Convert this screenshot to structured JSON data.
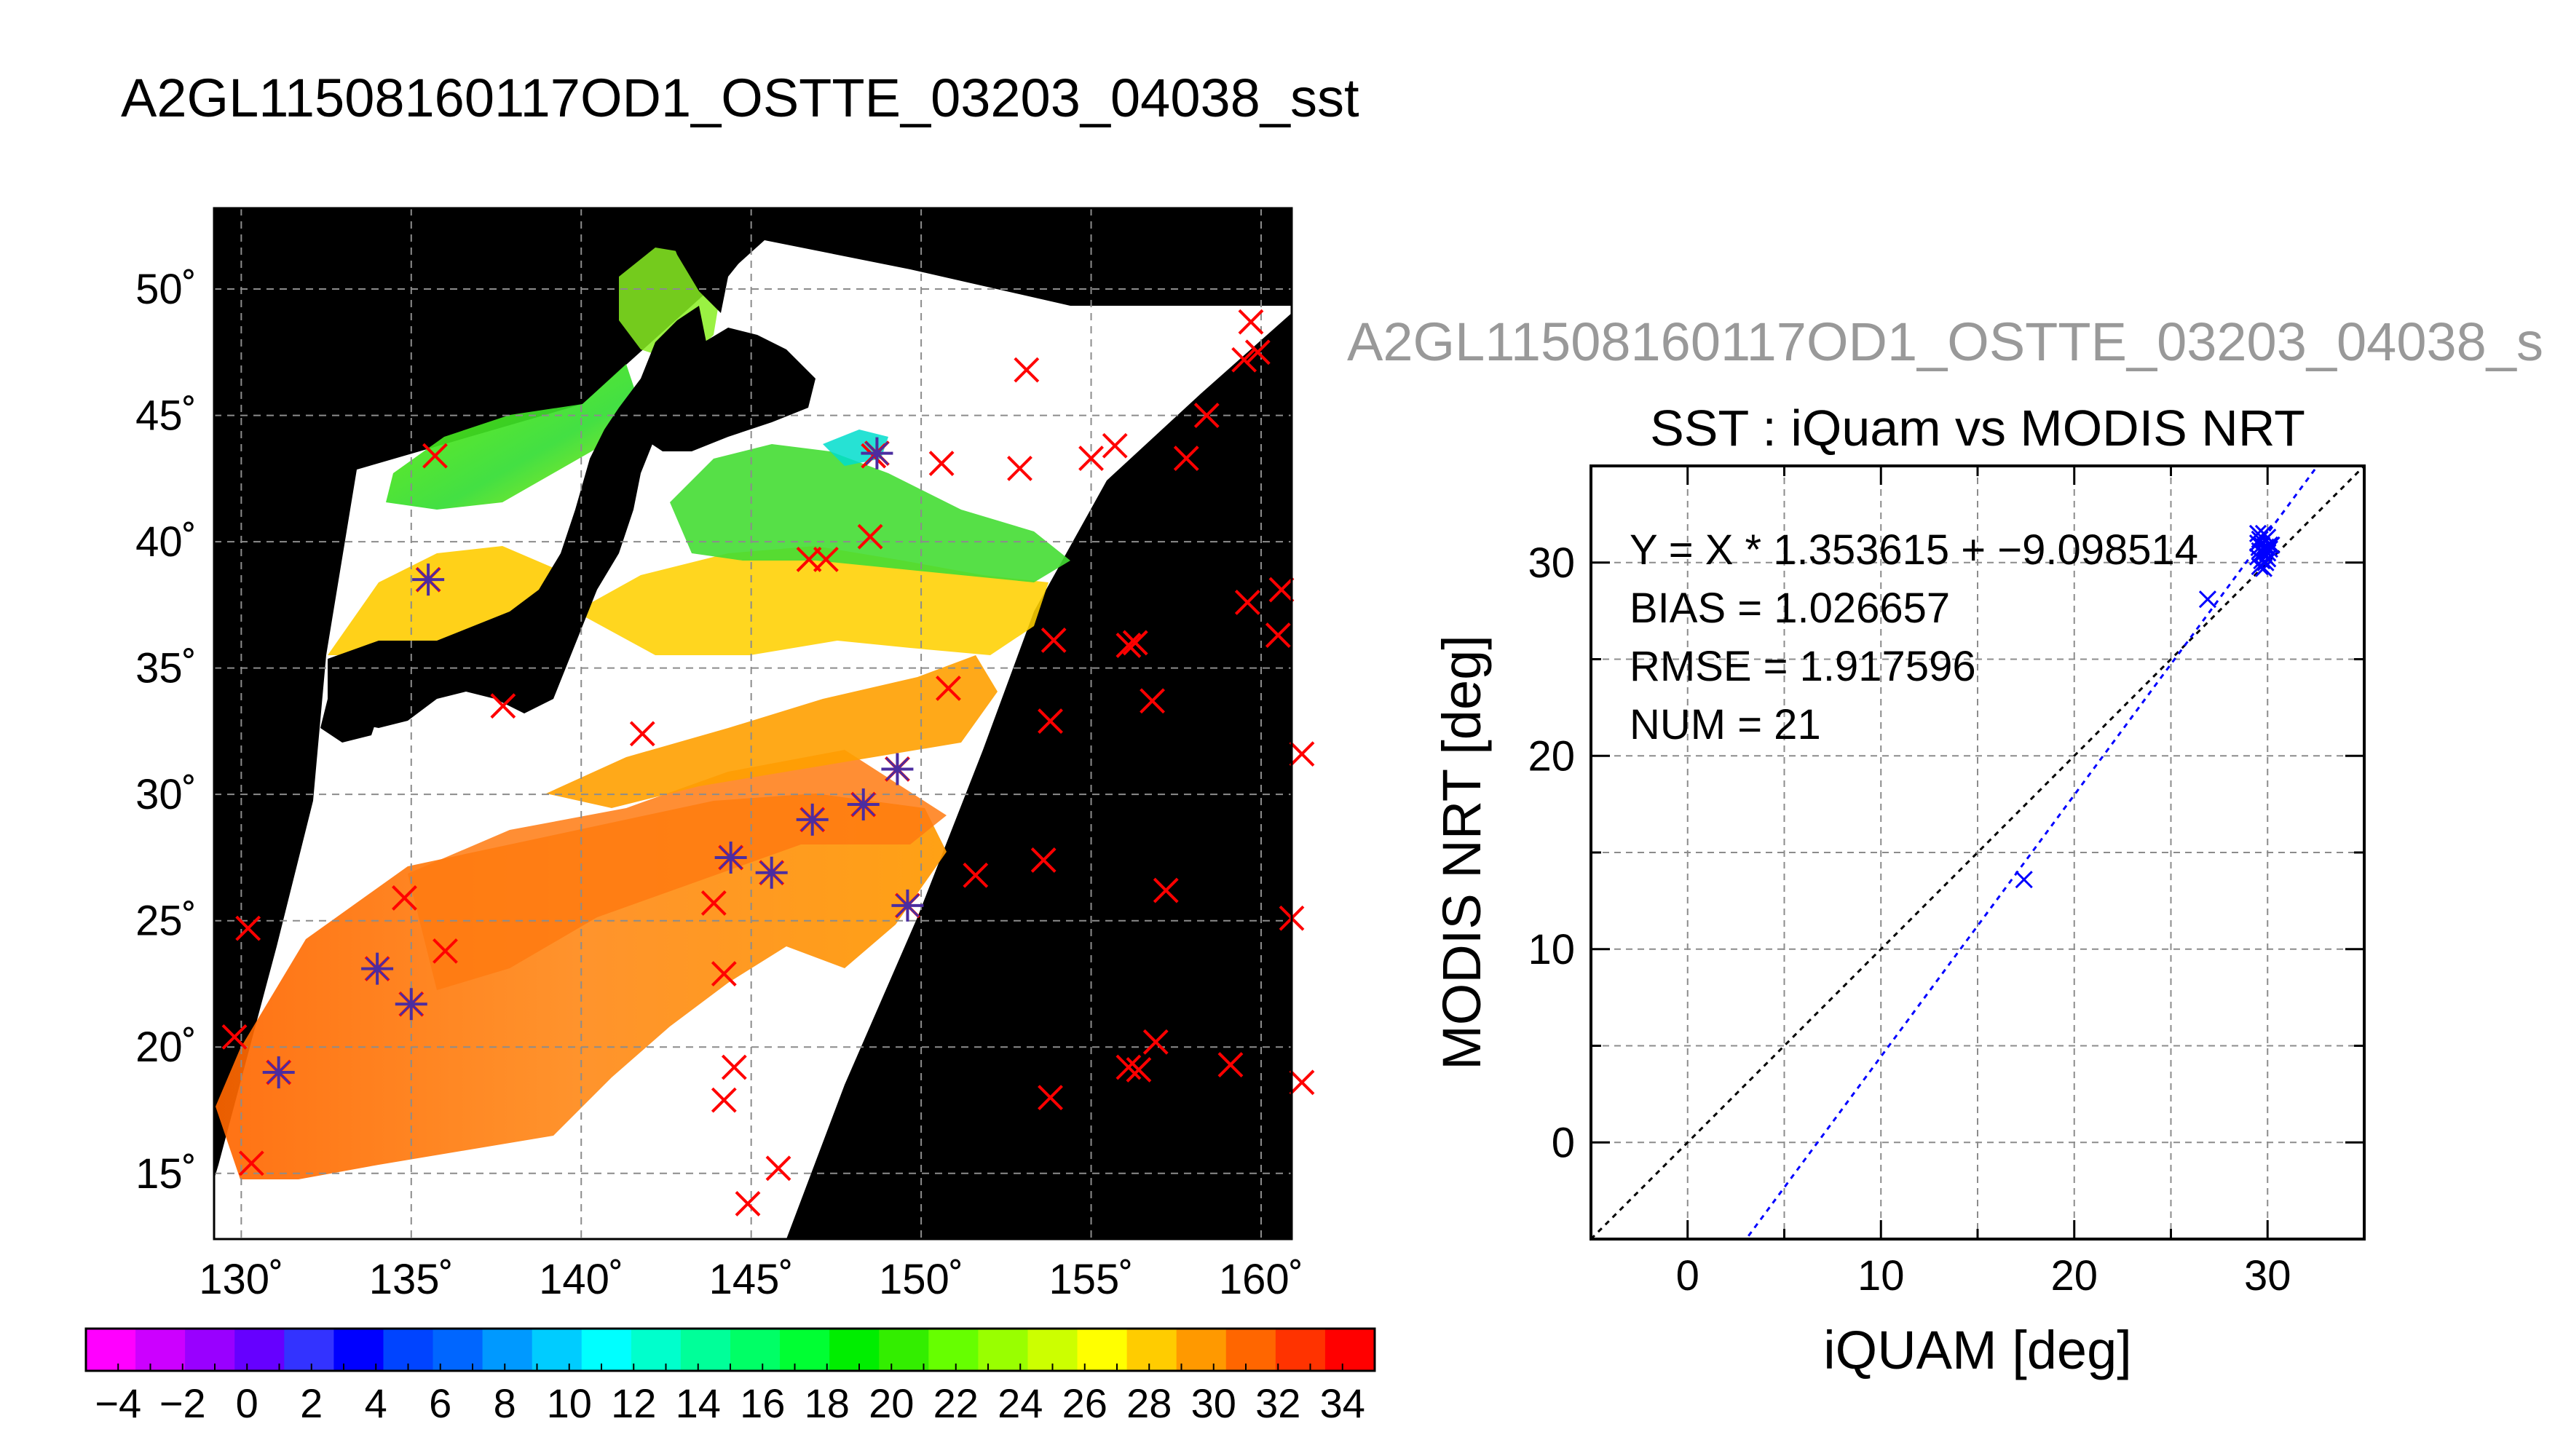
{
  "title": "A2GL11508160117OD1_OSTTE_03203_04038_sst",
  "chart_data": [
    {
      "type": "map",
      "map": {
        "lon_ticks": [
          "130˚",
          "135˚",
          "140˚",
          "145˚",
          "150˚",
          "155˚",
          "160˚"
        ],
        "lon_values": [
          130,
          135,
          140,
          145,
          150,
          155,
          160
        ],
        "lat_ticks": [
          "15˚",
          "20˚",
          "25˚",
          "30˚",
          "35˚",
          "40˚",
          "45˚",
          "50˚"
        ],
        "lat_values": [
          15,
          20,
          25,
          30,
          35,
          40,
          45,
          50
        ],
        "lon_range": [
          129.2,
          160.9
        ],
        "lat_range": [
          12.4,
          53.2
        ],
        "grid": true,
        "background": "#000000",
        "matchups": [
          {
            "lon": 131.1,
            "lat": 19.0
          },
          {
            "lon": 134.0,
            "lat": 23.1
          },
          {
            "lon": 135.0,
            "lat": 21.7
          },
          {
            "lon": 135.5,
            "lat": 38.5
          },
          {
            "lon": 144.4,
            "lat": 27.5
          },
          {
            "lon": 145.6,
            "lat": 26.9
          },
          {
            "lon": 146.8,
            "lat": 29.0
          },
          {
            "lon": 148.3,
            "lat": 29.6
          },
          {
            "lon": 149.3,
            "lat": 31.0
          },
          {
            "lon": 148.7,
            "lat": 43.5
          },
          {
            "lon": 149.6,
            "lat": 25.6
          }
        ],
        "insitu_only": [
          {
            "lon": 130.2,
            "lat": 24.7
          },
          {
            "lon": 129.8,
            "lat": 20.4
          },
          {
            "lon": 130.3,
            "lat": 15.4
          },
          {
            "lon": 134.8,
            "lat": 25.9
          },
          {
            "lon": 136.0,
            "lat": 23.8
          },
          {
            "lon": 135.7,
            "lat": 43.4
          },
          {
            "lon": 137.7,
            "lat": 33.5
          },
          {
            "lon": 141.8,
            "lat": 32.4
          },
          {
            "lon": 143.9,
            "lat": 25.7
          },
          {
            "lon": 144.2,
            "lat": 22.9
          },
          {
            "lon": 144.5,
            "lat": 19.2
          },
          {
            "lon": 144.2,
            "lat": 17.9
          },
          {
            "lon": 145.8,
            "lat": 15.2
          },
          {
            "lon": 144.9,
            "lat": 13.8
          },
          {
            "lon": 146.7,
            "lat": 39.3
          },
          {
            "lon": 147.2,
            "lat": 39.3
          },
          {
            "lon": 148.5,
            "lat": 40.2
          },
          {
            "lon": 148.6,
            "lat": 43.4
          },
          {
            "lon": 150.6,
            "lat": 43.1
          },
          {
            "lon": 152.9,
            "lat": 42.9
          },
          {
            "lon": 153.1,
            "lat": 46.8
          },
          {
            "lon": 155.0,
            "lat": 43.3
          },
          {
            "lon": 155.7,
            "lat": 43.8
          },
          {
            "lon": 157.8,
            "lat": 43.3
          },
          {
            "lon": 158.4,
            "lat": 45.0
          },
          {
            "lon": 159.5,
            "lat": 47.2
          },
          {
            "lon": 159.7,
            "lat": 48.7
          },
          {
            "lon": 159.9,
            "lat": 47.5
          },
          {
            "lon": 150.8,
            "lat": 34.2
          },
          {
            "lon": 153.9,
            "lat": 36.1
          },
          {
            "lon": 153.8,
            "lat": 32.9
          },
          {
            "lon": 151.6,
            "lat": 26.8
          },
          {
            "lon": 153.6,
            "lat": 27.4
          },
          {
            "lon": 156.1,
            "lat": 35.9
          },
          {
            "lon": 156.3,
            "lat": 36.0
          },
          {
            "lon": 156.8,
            "lat": 33.7
          },
          {
            "lon": 157.2,
            "lat": 26.2
          },
          {
            "lon": 159.6,
            "lat": 37.6
          },
          {
            "lon": 160.6,
            "lat": 38.1
          },
          {
            "lon": 160.5,
            "lat": 36.3
          },
          {
            "lon": 161.2,
            "lat": 31.6
          },
          {
            "lon": 160.9,
            "lat": 25.1
          },
          {
            "lon": 156.1,
            "lat": 19.2
          },
          {
            "lon": 156.4,
            "lat": 19.1
          },
          {
            "lon": 156.9,
            "lat": 20.2
          },
          {
            "lon": 159.1,
            "lat": 19.3
          },
          {
            "lon": 161.2,
            "lat": 18.6
          },
          {
            "lon": 153.8,
            "lat": 18.0
          }
        ]
      },
      "colorbar": {
        "tick_labels": [
          "−4",
          "−2",
          "0",
          "2",
          "4",
          "6",
          "8",
          "10",
          "12",
          "14",
          "16",
          "18",
          "20",
          "22",
          "24",
          "26",
          "28",
          "30",
          "32",
          "34"
        ],
        "min": -5,
        "max": 35,
        "step": 2,
        "colors": [
          "#ff00ff",
          "#cc00ff",
          "#9900ff",
          "#6600ff",
          "#3333ff",
          "#0000ff",
          "#0044ff",
          "#0066ff",
          "#0099ff",
          "#00ccff",
          "#00ffff",
          "#00ffcc",
          "#00ff99",
          "#00ff66",
          "#00ff33",
          "#00ee00",
          "#33ee00",
          "#66ff00",
          "#99ff00",
          "#ccff00",
          "#ffff00",
          "#ffcc00",
          "#ff9900",
          "#ff6600",
          "#ff3300",
          "#ff0000"
        ]
      }
    },
    {
      "type": "scatter",
      "overlay_title": "A2GL11508160117OD1_OSTTE_03203_04038_s",
      "title": "SST : iQuam vs MODIS NRT",
      "xlabel": "iQUAM [deg]",
      "ylabel": "MODIS NRT [deg]",
      "xlim": [
        -5,
        35
      ],
      "ylim": [
        -5,
        35
      ],
      "xticks": [
        0,
        10,
        20,
        30
      ],
      "yticks": [
        0,
        10,
        20,
        30
      ],
      "grid": true,
      "stats": [
        "Y = X * 1.353615 + −9.098514",
        "BIAS = 1.026657",
        "RMSE = 1.917596",
        "NUM = 21"
      ],
      "fit": {
        "slope": 1.353615,
        "intercept": -9.098514
      },
      "points": [
        {
          "x": 17.4,
          "y": 13.6
        },
        {
          "x": 26.9,
          "y": 28.1
        },
        {
          "x": 29.5,
          "y": 31.5
        },
        {
          "x": 29.6,
          "y": 31.2
        },
        {
          "x": 29.8,
          "y": 31.5
        },
        {
          "x": 30.0,
          "y": 31.3
        },
        {
          "x": 30.2,
          "y": 30.9
        },
        {
          "x": 29.7,
          "y": 30.9
        },
        {
          "x": 29.9,
          "y": 30.8
        },
        {
          "x": 30.1,
          "y": 30.7
        },
        {
          "x": 29.6,
          "y": 30.6
        },
        {
          "x": 29.8,
          "y": 30.5
        },
        {
          "x": 30.0,
          "y": 30.5
        },
        {
          "x": 29.5,
          "y": 30.3
        },
        {
          "x": 29.7,
          "y": 30.1
        },
        {
          "x": 29.9,
          "y": 30.0
        },
        {
          "x": 29.6,
          "y": 29.8
        },
        {
          "x": 29.8,
          "y": 29.7
        },
        {
          "x": 30.1,
          "y": 30.9
        },
        {
          "x": 29.5,
          "y": 31.0
        },
        {
          "x": 30.0,
          "y": 30.2
        }
      ],
      "colors": {
        "points": "#0000ff",
        "fit": "#0000ff",
        "identity": "#000000"
      }
    }
  ]
}
